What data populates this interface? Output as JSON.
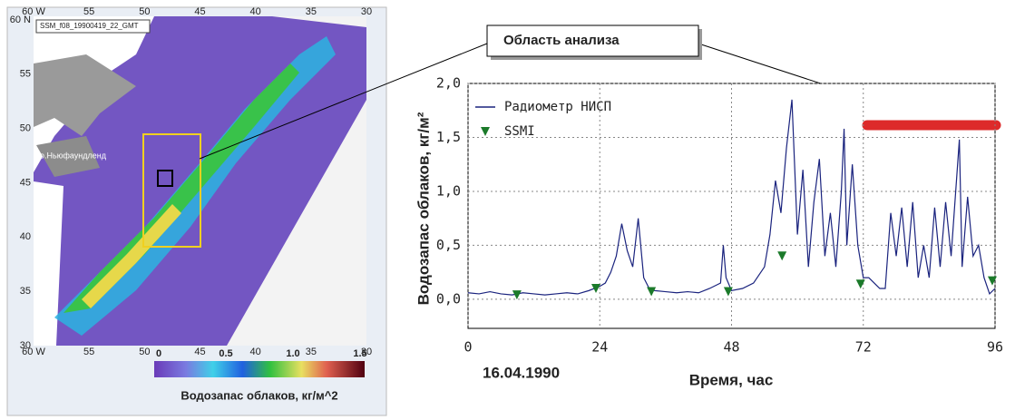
{
  "map": {
    "header": "SSM_f08_19900419_22_GMT",
    "lon_labels": [
      "60 W",
      "55",
      "50",
      "45",
      "40",
      "35",
      "30"
    ],
    "lat_labels": [
      "60 N",
      "55",
      "50",
      "45",
      "40",
      "35",
      "30"
    ],
    "island_label": "о.Ньюфаундленд",
    "colorbar": {
      "ticks": [
        "0",
        "0.5",
        "1.0",
        "1.5"
      ],
      "label": "Водозапас облаков, кг/м^2"
    }
  },
  "callout": "Область анализа",
  "chart_data": {
    "type": "line",
    "xlabel": "Время, час",
    "ylabel": "Водозапас облаков, кг/м²",
    "date": "16.04.1990",
    "xlim": [
      0,
      96
    ],
    "xticks": [
      0,
      24,
      48,
      72,
      96
    ],
    "ylim": [
      -0.27,
      2.0
    ],
    "yticks": [
      {
        "value": 0,
        "label": "0,0"
      },
      {
        "value": 0.5,
        "label": "0,5"
      },
      {
        "value": 1,
        "label": "1,0"
      },
      {
        "value": 1.5,
        "label": "1,5"
      },
      {
        "value": 2,
        "label": "2,0"
      }
    ],
    "grid": true,
    "series": [
      {
        "name": "Радиометр НИСП",
        "color": "#1a237e",
        "x": [
          0,
          2,
          4,
          6,
          8,
          10,
          12,
          14,
          16,
          18,
          20,
          22,
          24,
          25,
          26,
          27,
          28,
          29,
          30,
          31,
          32,
          33,
          34,
          36,
          38,
          40,
          42,
          44,
          46,
          46.5,
          47,
          48,
          50,
          52,
          54,
          55,
          56,
          57,
          58,
          59,
          60,
          61,
          62,
          63,
          64,
          65,
          66,
          67,
          68,
          68.5,
          69,
          70,
          71,
          72,
          73,
          74,
          75,
          76,
          77,
          78,
          79,
          80,
          81,
          82,
          83,
          84,
          85,
          86,
          87,
          88,
          89.5,
          90,
          91,
          92,
          93,
          94,
          95,
          96
        ],
        "values": [
          0.06,
          0.05,
          0.07,
          0.05,
          0.04,
          0.06,
          0.05,
          0.04,
          0.05,
          0.06,
          0.05,
          0.08,
          0.12,
          0.15,
          0.25,
          0.4,
          0.7,
          0.45,
          0.3,
          0.75,
          0.2,
          0.1,
          0.08,
          0.07,
          0.06,
          0.07,
          0.06,
          0.1,
          0.15,
          0.5,
          0.2,
          0.08,
          0.1,
          0.15,
          0.3,
          0.6,
          1.1,
          0.8,
          1.4,
          1.85,
          0.6,
          1.2,
          0.3,
          0.9,
          1.3,
          0.4,
          0.8,
          0.3,
          1.0,
          1.58,
          0.5,
          1.25,
          0.5,
          0.2,
          0.2,
          0.15,
          0.1,
          0.1,
          0.8,
          0.4,
          0.85,
          0.3,
          0.9,
          0.2,
          0.5,
          0.2,
          0.85,
          0.3,
          0.9,
          0.4,
          1.48,
          0.3,
          0.95,
          0.4,
          0.5,
          0.2,
          0.05,
          0.1
        ]
      },
      {
        "name": "SSMI",
        "type": "scatter",
        "color": "#1b7a2a",
        "x": [
          8.9,
          23.3,
          33.4,
          47.4,
          57.2,
          71.5,
          95.5
        ],
        "values": [
          0.04,
          0.1,
          0.07,
          0.07,
          0.4,
          0.14,
          0.17
        ]
      }
    ]
  }
}
